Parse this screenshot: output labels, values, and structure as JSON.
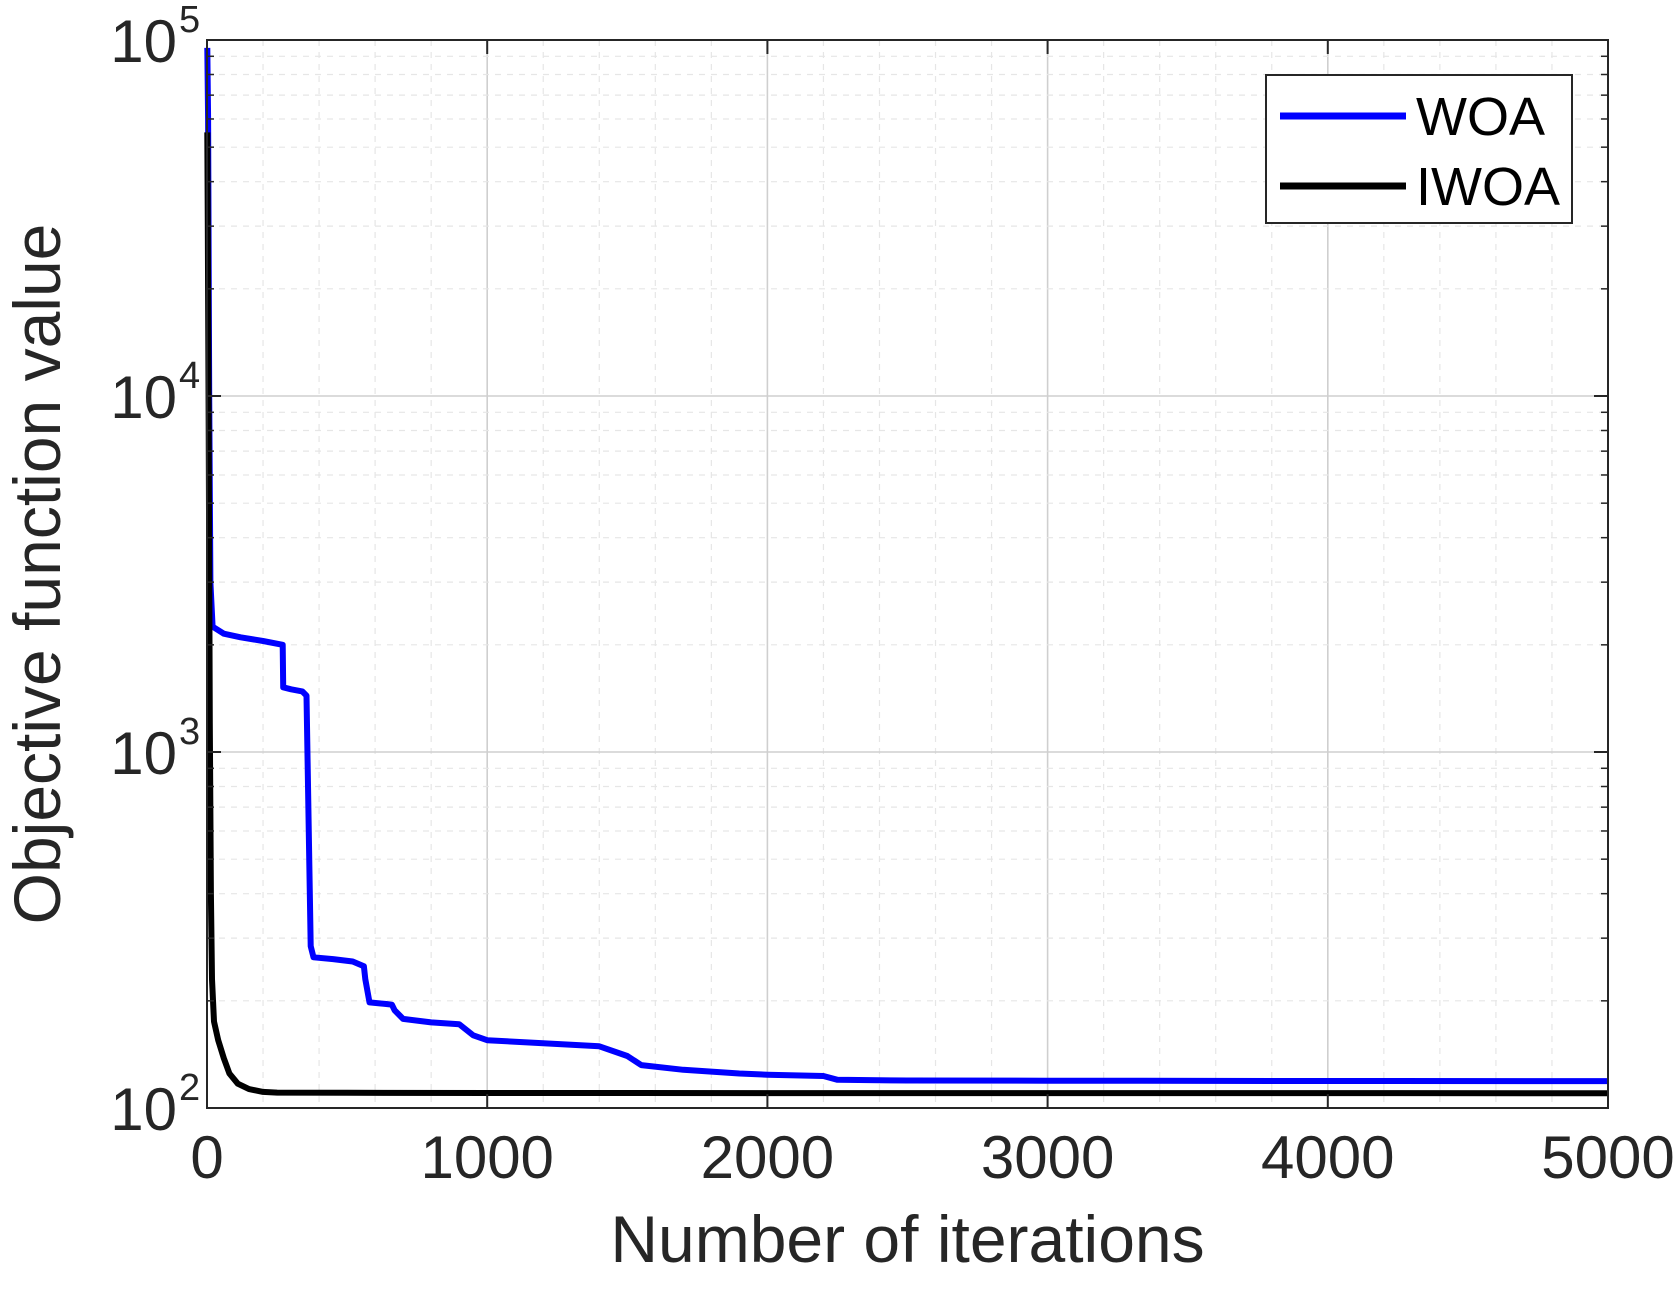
{
  "chart_data": {
    "type": "line",
    "title": "",
    "xlabel": "Number of iterations",
    "ylabel": "Objective function value",
    "xlim": [
      0,
      5000
    ],
    "ylim": [
      100,
      100000
    ],
    "yscale": "log",
    "grid": true,
    "minor_grid": true,
    "x_ticks": [
      0,
      1000,
      2000,
      3000,
      4000,
      5000
    ],
    "x_tick_labels": [
      "0",
      "1000",
      "2000",
      "3000",
      "4000",
      "5000"
    ],
    "y_ticks": [
      100,
      1000,
      10000,
      100000
    ],
    "y_tick_labels": [
      {
        "base": "10",
        "exp": "2"
      },
      {
        "base": "10",
        "exp": "3"
      },
      {
        "base": "10",
        "exp": "4"
      },
      {
        "base": "10",
        "exp": "5"
      }
    ],
    "legend_position": "top-right",
    "series": [
      {
        "name": "WOA",
        "color": "#0000ff",
        "points": [
          [
            1,
            95000
          ],
          [
            4,
            60000
          ],
          [
            8,
            10000
          ],
          [
            12,
            3000
          ],
          [
            20,
            2250
          ],
          [
            60,
            2150
          ],
          [
            120,
            2100
          ],
          [
            200,
            2050
          ],
          [
            270,
            2000
          ],
          [
            272,
            1520
          ],
          [
            300,
            1500
          ],
          [
            340,
            1480
          ],
          [
            355,
            1440
          ],
          [
            370,
            285
          ],
          [
            380,
            265
          ],
          [
            450,
            262
          ],
          [
            520,
            258
          ],
          [
            560,
            250
          ],
          [
            565,
            230
          ],
          [
            580,
            198
          ],
          [
            640,
            196
          ],
          [
            660,
            195
          ],
          [
            670,
            188
          ],
          [
            700,
            178
          ],
          [
            800,
            174
          ],
          [
            900,
            172
          ],
          [
            950,
            160
          ],
          [
            1000,
            155
          ],
          [
            1200,
            152
          ],
          [
            1400,
            149
          ],
          [
            1500,
            140
          ],
          [
            1550,
            132
          ],
          [
            1700,
            128
          ],
          [
            1900,
            125
          ],
          [
            2000,
            124
          ],
          [
            2200,
            123
          ],
          [
            2250,
            120
          ],
          [
            2500,
            119.5
          ],
          [
            3000,
            119.3
          ],
          [
            4000,
            119.1
          ],
          [
            5000,
            119
          ]
        ]
      },
      {
        "name": "IWOA",
        "color": "#000000",
        "points": [
          [
            1,
            55000
          ],
          [
            3,
            30000
          ],
          [
            6,
            8000
          ],
          [
            10,
            1200
          ],
          [
            14,
            400
          ],
          [
            18,
            230
          ],
          [
            25,
            175
          ],
          [
            40,
            155
          ],
          [
            60,
            138
          ],
          [
            80,
            125
          ],
          [
            110,
            117
          ],
          [
            150,
            113
          ],
          [
            200,
            111
          ],
          [
            250,
            110.5
          ],
          [
            500,
            110.3
          ],
          [
            1000,
            110.2
          ],
          [
            2000,
            110.1
          ],
          [
            3000,
            110.1
          ],
          [
            4000,
            110.1
          ],
          [
            5000,
            110
          ]
        ]
      }
    ]
  }
}
